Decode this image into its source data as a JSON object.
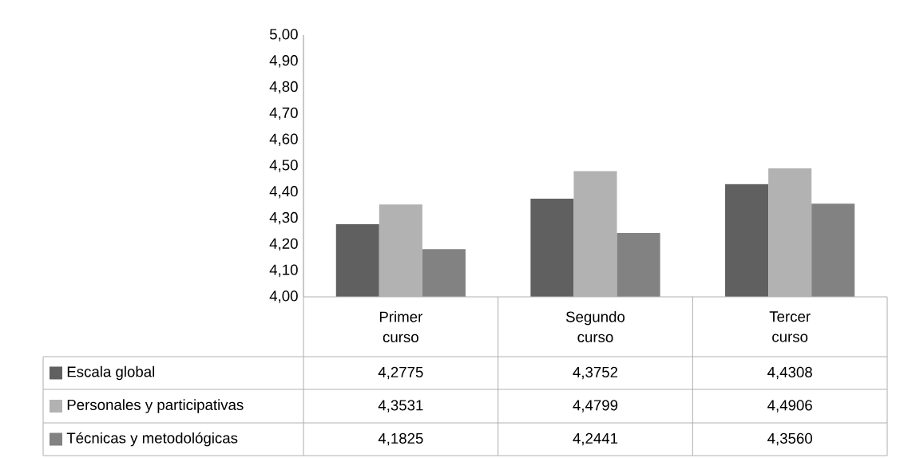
{
  "chart_data": {
    "type": "bar",
    "categories": [
      "Primer curso",
      "Segundo curso",
      "Tercer curso"
    ],
    "series": [
      {
        "name": "Escala global",
        "color": "#606060",
        "values": [
          4.2775,
          4.3752,
          4.4308
        ],
        "value_labels": [
          "4,2775",
          "4,3752",
          "4,4308"
        ]
      },
      {
        "name": "Personales y participativas",
        "color": "#b2b2b2",
        "values": [
          4.3531,
          4.4799,
          4.4906
        ],
        "value_labels": [
          "4,3531",
          "4,4799",
          "4,4906"
        ]
      },
      {
        "name": "Técnicas y metodológicas",
        "color": "#828282",
        "values": [
          4.1825,
          4.2441,
          4.356
        ],
        "value_labels": [
          "4,1825",
          "4,2441",
          "4,3560"
        ]
      }
    ],
    "ylim": [
      4,
      5
    ],
    "yticks": [
      {
        "value": 4.0,
        "label": "4,00"
      },
      {
        "value": 4.1,
        "label": "4,10"
      },
      {
        "value": 4.2,
        "label": "4,20"
      },
      {
        "value": 4.3,
        "label": "4,30"
      },
      {
        "value": 4.4,
        "label": "4,40"
      },
      {
        "value": 4.5,
        "label": "4,50"
      },
      {
        "value": 4.6,
        "label": "4,60"
      },
      {
        "value": 4.7,
        "label": "4,70"
      },
      {
        "value": 4.8,
        "label": "4,80"
      },
      {
        "value": 4.9,
        "label": "4,90"
      },
      {
        "value": 5.0,
        "label": "5,00"
      }
    ],
    "legend": "bottom"
  }
}
